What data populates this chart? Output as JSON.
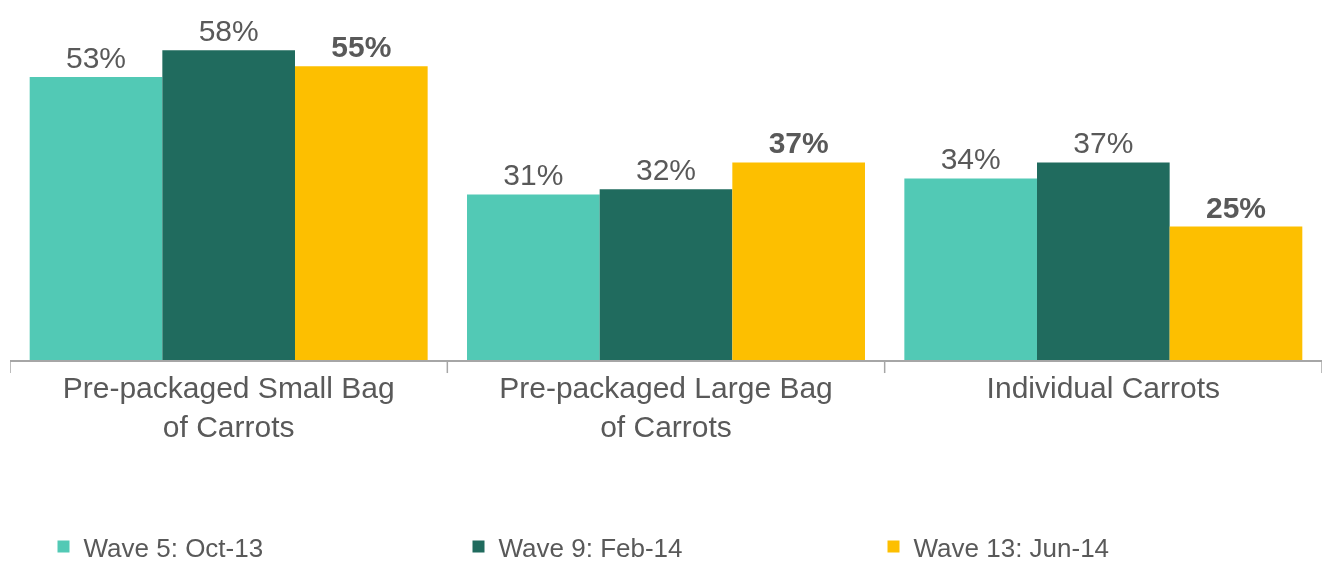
{
  "chart_data": {
    "type": "bar",
    "categories": [
      "Pre-packaged Small Bag of Carrots",
      "Pre-packaged Large Bag of Carrots",
      "Individual Carrots"
    ],
    "series": [
      {
        "name": "Wave 5: Oct-13",
        "color": "#52c9b5",
        "values": [
          53,
          31,
          34
        ],
        "value_labels": [
          "53%",
          "31%",
          "34%"
        ]
      },
      {
        "name": "Wave 9: Feb-14",
        "color": "#206b5e",
        "values": [
          58,
          32,
          37
        ],
        "value_labels": [
          "58%",
          "32%",
          "37%"
        ]
      },
      {
        "name": "Wave 13: Jun-14",
        "color": "#fdbf00",
        "values": [
          55,
          37,
          25
        ],
        "value_labels": [
          "55%",
          "37%",
          "25%"
        ]
      }
    ],
    "legend": "bottom",
    "tick_labels": "x"
  }
}
